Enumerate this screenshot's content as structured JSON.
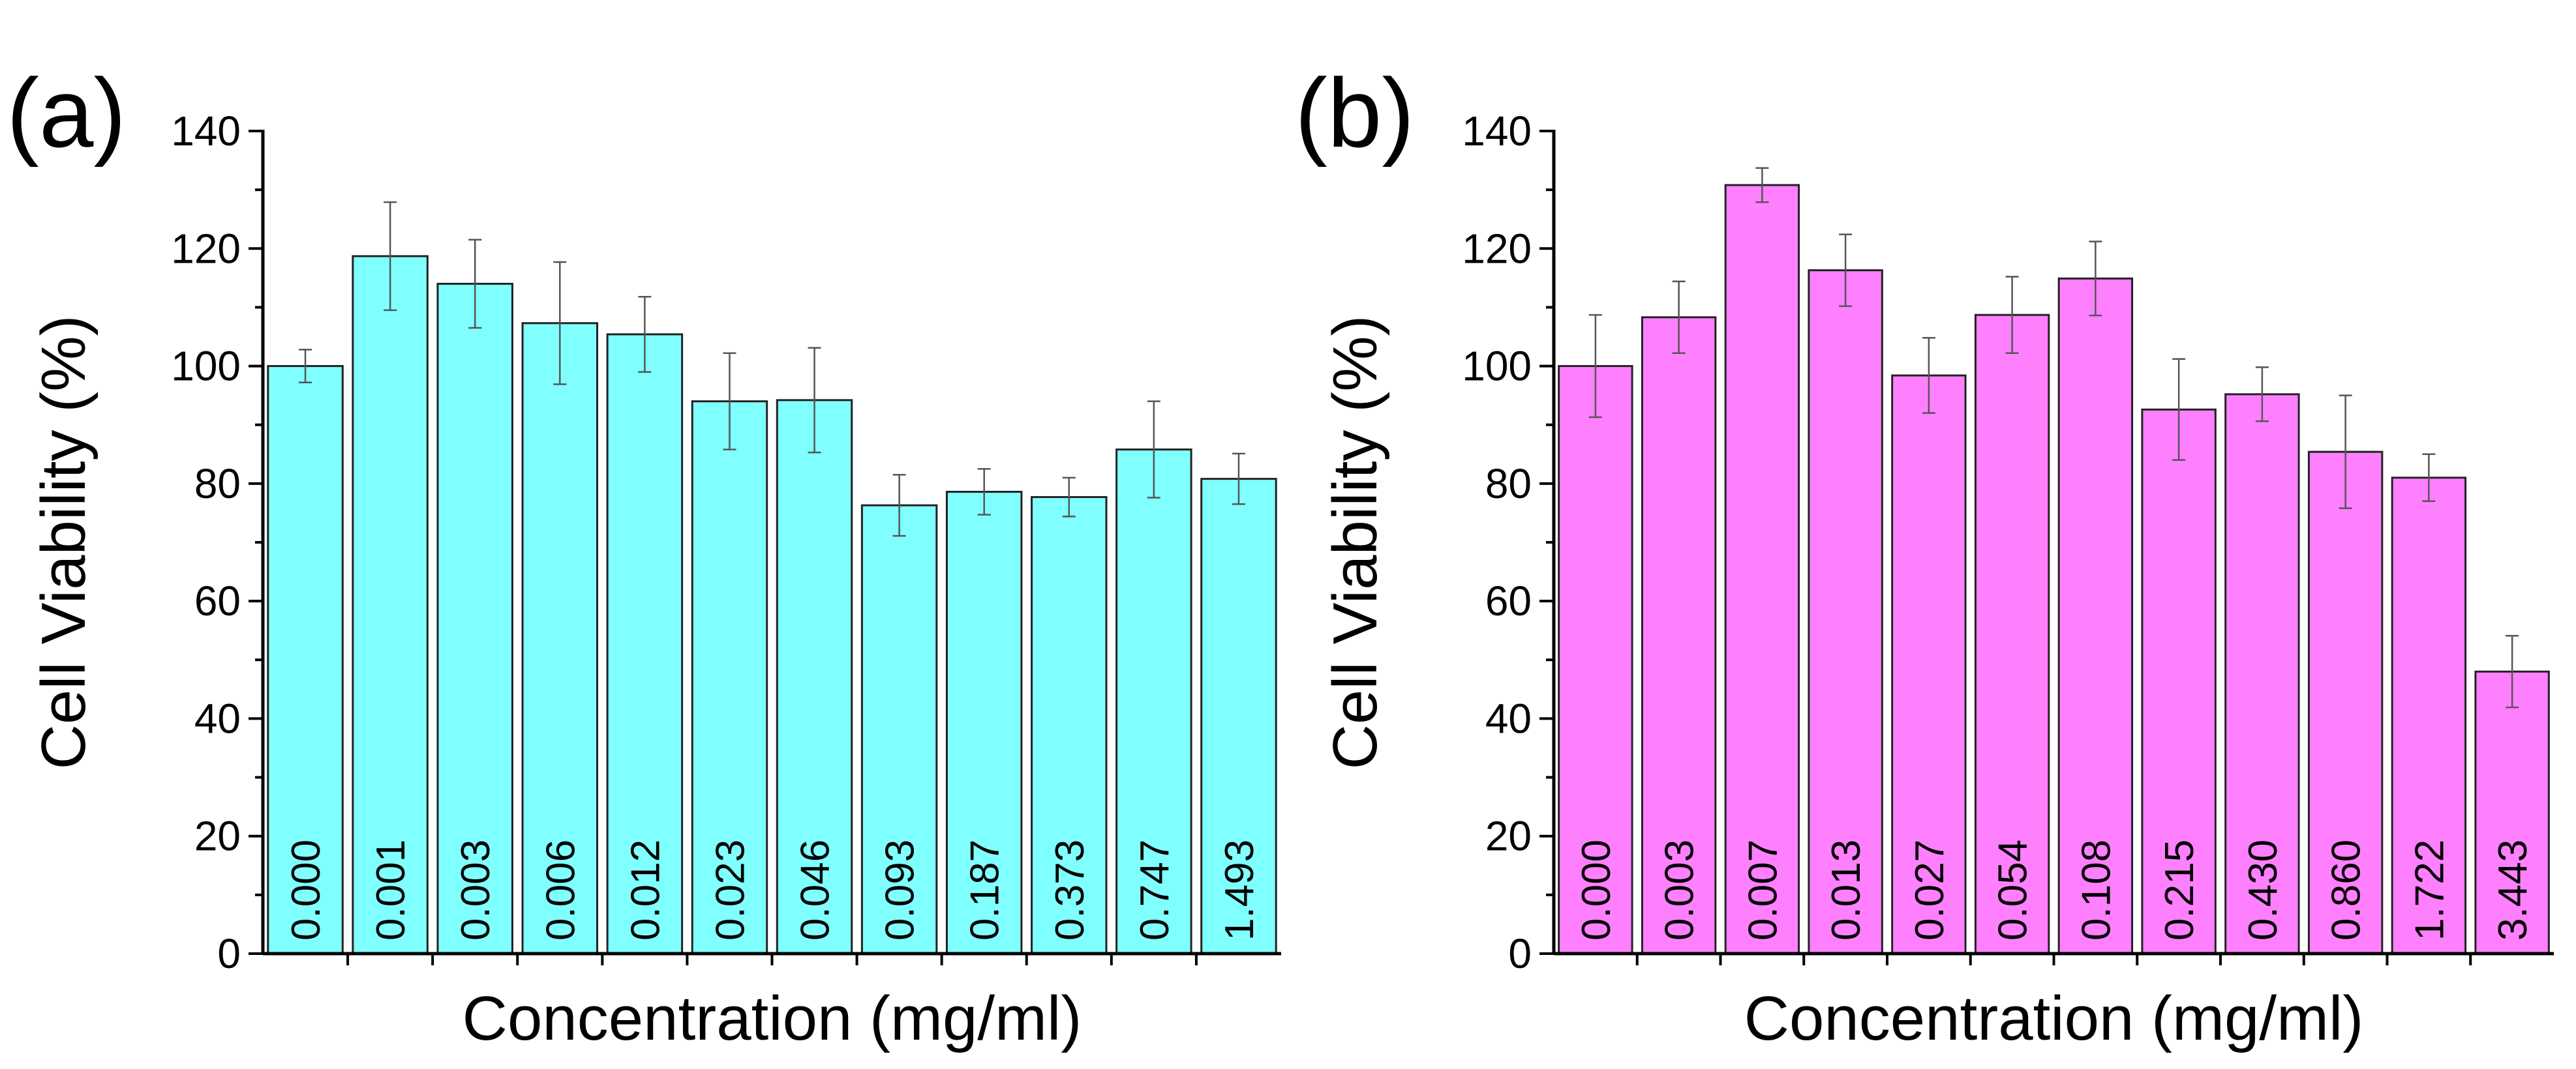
{
  "chart_data": [
    {
      "panel_label": "(a)",
      "type": "bar",
      "xlabel": "Concentration (mg/ml)",
      "ylabel": "Cell Viability (%)",
      "ylim": [
        0,
        140
      ],
      "yticks": [
        0,
        20,
        40,
        60,
        80,
        100,
        120,
        140
      ],
      "bar_color": "#80FFFF",
      "categories": [
        "0.000",
        "0.001",
        "0.003",
        "0.006",
        "0.012",
        "0.023",
        "0.046",
        "0.093",
        "0.187",
        "0.373",
        "0.747",
        "1.493"
      ],
      "values": [
        100.0,
        118.7,
        114.0,
        107.3,
        105.4,
        94.0,
        94.2,
        76.3,
        78.6,
        77.7,
        85.8,
        80.8
      ],
      "errors": [
        2.8,
        9.2,
        7.5,
        10.4,
        6.4,
        8.2,
        8.9,
        5.2,
        3.9,
        3.3,
        8.2,
        4.3
      ]
    },
    {
      "panel_label": "(b)",
      "type": "bar",
      "xlabel": "Concentration (mg/ml)",
      "ylabel": "Cell Viability (%)",
      "ylim": [
        0,
        140
      ],
      "yticks": [
        0,
        20,
        40,
        60,
        80,
        100,
        120,
        140
      ],
      "bar_color": "#FF80FF",
      "categories": [
        "0.000",
        "0.003",
        "0.007",
        "0.013",
        "0.027",
        "0.054",
        "0.108",
        "0.215",
        "0.430",
        "0.860",
        "1.722",
        "3.443"
      ],
      "values": [
        100.0,
        108.3,
        130.8,
        116.3,
        98.4,
        108.7,
        114.9,
        92.6,
        95.2,
        85.4,
        81.0,
        48.0
      ],
      "errors": [
        8.7,
        6.1,
        2.9,
        6.1,
        6.4,
        6.5,
        6.3,
        8.6,
        4.6,
        9.6,
        4.0,
        6.1
      ]
    }
  ]
}
